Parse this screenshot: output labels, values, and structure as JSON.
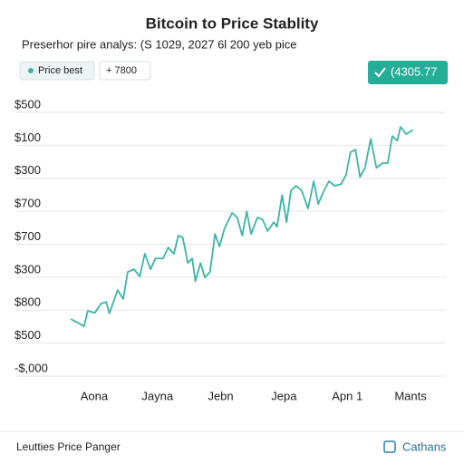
{
  "chart_data": {
    "type": "line",
    "title": "Bitcoin to Price Stablity",
    "subtitle": "Preserhor pire analys: (S 1029, 2027 6l 200 yeb pice",
    "legend_chip": "Price best",
    "delta_chip": "+ 7800",
    "badge": "(4305.77",
    "footer_left": "Leutties Price Panger",
    "footer_right": "Cathans",
    "grid": true,
    "xlim": [
      -0.5,
      5.3
    ],
    "xticks": [
      {
        "value": 0,
        "label": "Aona"
      },
      {
        "value": 1,
        "label": "Jayna"
      },
      {
        "value": 2,
        "label": "Jebn"
      },
      {
        "value": 3,
        "label": "Jepa"
      },
      {
        "value": 4,
        "label": "Apn 1"
      },
      {
        "value": 5,
        "label": "Mants"
      }
    ],
    "ylim": [
      0,
      8
    ],
    "yticks": [
      {
        "value": 0,
        "label": "-$,000"
      },
      {
        "value": 1,
        "label": "$500"
      },
      {
        "value": 2,
        "label": "$800"
      },
      {
        "value": 3,
        "label": "$300"
      },
      {
        "value": 4,
        "label": "$700"
      },
      {
        "value": 5,
        "label": "$700"
      },
      {
        "value": 6,
        "label": "$300"
      },
      {
        "value": 7,
        "label": "$100"
      },
      {
        "value": 8,
        "label": "$500"
      }
    ],
    "x": [
      -0.37,
      -0.23,
      -0.16,
      -0.1,
      0.01,
      0.11,
      0.19,
      0.24,
      0.37,
      0.46,
      0.53,
      0.63,
      0.72,
      0.8,
      0.89,
      0.97,
      1.09,
      1.17,
      1.26,
      1.33,
      1.4,
      1.48,
      1.55,
      1.6,
      1.68,
      1.75,
      1.83,
      1.91,
      1.98,
      2.06,
      2.18,
      2.26,
      2.34,
      2.41,
      2.48,
      2.58,
      2.66,
      2.74,
      2.84,
      2.89,
      2.97,
      3.04,
      3.11,
      3.19,
      3.28,
      3.38,
      3.47,
      3.54,
      3.62,
      3.71,
      3.8,
      3.9,
      3.98,
      4.05,
      4.13,
      4.2,
      4.28,
      4.37,
      4.46,
      4.56,
      4.64,
      4.71,
      4.79,
      4.84,
      4.93,
      5.04
    ],
    "series": [
      {
        "color": "#3cb5a6",
        "values": [
          1.51,
          1.37,
          1.29,
          1.76,
          1.7,
          1.98,
          2.03,
          1.68,
          2.39,
          2.12,
          2.94,
          3.02,
          2.8,
          3.49,
          3.02,
          3.35,
          3.35,
          3.68,
          3.49,
          4.04,
          3.98,
          3.21,
          3.35,
          2.66,
          3.21,
          2.77,
          2.94,
          4.09,
          3.71,
          4.26,
          4.73,
          4.59,
          4.04,
          4.78,
          4.09,
          4.59,
          4.53,
          4.18,
          4.45,
          4.31,
          5.27,
          4.45,
          5.41,
          5.55,
          5.41,
          4.86,
          5.69,
          5.0,
          5.36,
          5.69,
          5.55,
          5.6,
          5.88,
          6.57,
          6.65,
          5.82,
          6.1,
          6.98,
          6.1,
          6.24,
          6.24,
          7.06,
          6.92,
          7.34,
          7.12,
          7.25
        ]
      }
    ]
  }
}
